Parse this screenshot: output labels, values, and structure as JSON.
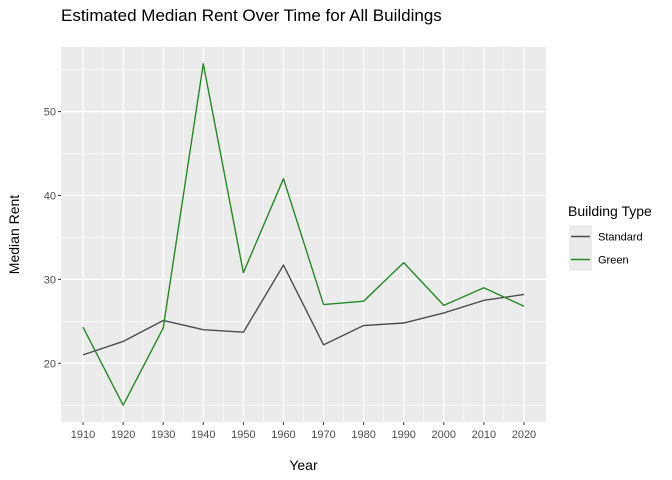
{
  "chart_data": {
    "type": "line",
    "title": "Estimated Median Rent Over Time for All Buildings",
    "xlabel": "Year",
    "ylabel": "Median Rent",
    "x": [
      1910,
      1920,
      1930,
      1940,
      1950,
      1960,
      1970,
      1980,
      1990,
      2000,
      2010,
      2020
    ],
    "x_ticks": [
      "1910",
      "1920",
      "1930",
      "1940",
      "1950",
      "1960",
      "1970",
      "1980",
      "1990",
      "2000",
      "2010",
      "2020"
    ],
    "y_ticks": [
      20,
      30,
      40,
      50
    ],
    "xlim": [
      1904.5,
      2025.5
    ],
    "ylim": [
      13.0,
      57.7
    ],
    "grid": true,
    "legend": {
      "title": "Building Type",
      "position": "right"
    },
    "series": [
      {
        "name": "Standard",
        "color": "#4d4d4d",
        "values": [
          21.0,
          22.6,
          25.1,
          24.0,
          23.7,
          31.7,
          22.2,
          24.5,
          24.8,
          26.0,
          27.5,
          28.2
        ]
      },
      {
        "name": "Green",
        "color": "#228b22",
        "values": [
          24.3,
          15.0,
          24.2,
          55.7,
          30.8,
          42.0,
          27.0,
          27.4,
          32.0,
          26.9,
          29.0,
          26.8
        ]
      }
    ]
  }
}
